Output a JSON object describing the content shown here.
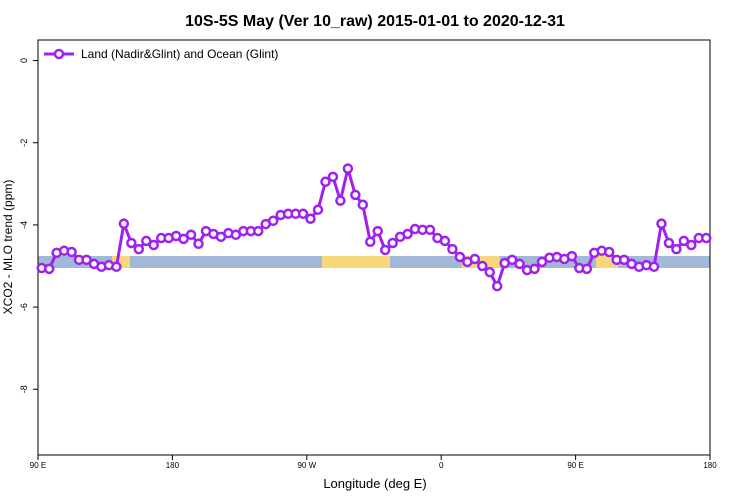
{
  "chart_data": {
    "type": "line",
    "title": "10S-5S May (Ver 10_raw)   2015-01-01 to 2020-12-31",
    "x_label": "Longitude (deg E)",
    "y_label": "XCO2 - MLO trend (ppm)",
    "x": [
      92.5,
      97.5,
      102.5,
      107.5,
      112.5,
      117.5,
      122.5,
      127.5,
      132.5,
      137.5,
      142.5,
      147.5,
      152.5,
      157.5,
      162.5,
      167.5,
      172.5,
      177.5,
      182.5,
      187.5,
      192.5,
      197.5,
      202.5,
      207.5,
      212.5,
      217.5,
      222.5,
      227.5,
      232.5,
      237.5,
      242.5,
      247.5,
      252.5,
      257.5,
      262.5,
      267.5,
      272.5,
      277.5,
      282.5,
      287.5,
      292.5,
      297.5,
      302.5,
      307.5,
      312.5,
      317.5,
      322.5,
      327.5,
      332.5,
      337.5,
      342.5,
      347.5,
      352.5,
      357.5,
      362.5,
      367.5,
      372.5,
      377.5,
      382.5,
      387.5,
      392.5,
      397.5,
      402.5,
      407.5,
      412.5,
      417.5,
      422.5,
      427.5,
      432.5,
      437.5,
      442.5,
      447.5,
      452.5,
      457.5,
      462.5,
      467.5,
      472.5,
      477.5,
      482.5,
      487.5,
      492.5,
      497.5,
      502.5,
      507.5,
      512.5,
      517.5,
      522.5,
      527.5,
      532.5,
      537.5
    ],
    "series": [
      {
        "name": "Land (Nadir&Glint) and Ocean (Glint)",
        "color": "#a020f0",
        "values": [
          -5.05,
          -5.07,
          -4.68,
          -4.63,
          -4.66,
          -4.85,
          -4.85,
          -4.95,
          -5.02,
          -4.98,
          -5.02,
          -3.97,
          -4.44,
          -4.59,
          -4.39,
          -4.49,
          -4.32,
          -4.32,
          -4.27,
          -4.34,
          -4.24,
          -4.46,
          -4.15,
          -4.22,
          -4.29,
          -4.2,
          -4.24,
          -4.15,
          -4.15,
          -4.15,
          -3.98,
          -3.9,
          -3.76,
          -3.73,
          -3.73,
          -3.73,
          -3.85,
          -3.63,
          -2.95,
          -2.83,
          -3.41,
          -2.63,
          -3.27,
          -3.51,
          -4.41,
          -4.15,
          -4.61,
          -4.44,
          -4.29,
          -4.22,
          -4.1,
          -4.12,
          -4.12,
          -4.32,
          -4.39,
          -4.59,
          -4.78,
          -4.9,
          -4.83,
          -5.0,
          -5.15,
          -5.49,
          -4.93,
          -4.85,
          -4.95,
          -5.1,
          -5.07,
          -4.9,
          -4.8,
          -4.78,
          -4.83,
          -4.76,
          -5.05,
          -5.07,
          -4.68,
          -4.63,
          -4.66,
          -4.85,
          -4.85,
          -4.95,
          -5.02,
          -4.98,
          -5.02,
          -3.97,
          -4.44,
          -4.59,
          -4.39,
          -4.49,
          -4.32,
          -4.32
        ]
      }
    ],
    "xlim": [
      90,
      540
    ],
    "xticks": [
      {
        "value": 90,
        "label": "90 E"
      },
      180,
      {
        "value": 270,
        "label": "90 W"
      },
      {
        "value": 360,
        "label": "0"
      },
      {
        "value": 450,
        "label": "90 E"
      },
      {
        "value": 540,
        "label": "180"
      }
    ],
    "ylim": [
      -9.6,
      0.5
    ],
    "yticks": [
      0,
      -2,
      -4,
      -6,
      -8
    ],
    "legend": "top-left"
  }
}
